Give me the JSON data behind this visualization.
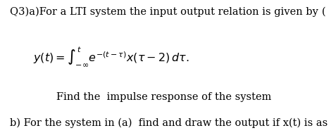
{
  "title_line": "Q3)a)For a LTI system the input output relation is given by",
  "title_right": "(",
  "equation": "$y(t) = \\int_{-\\infty}^{t} e^{-(t-\\tau)}x(\\tau - 2)\\,d\\tau.$",
  "line3": "Find the  impulse response of the system",
  "line4": "b) For the system in (a)  find and draw the output if x(t) is as below",
  "bg_color": "#ffffff",
  "text_color": "#000000",
  "title_fontsize": 10.5,
  "equation_fontsize": 11.5,
  "body_fontsize": 10.5
}
